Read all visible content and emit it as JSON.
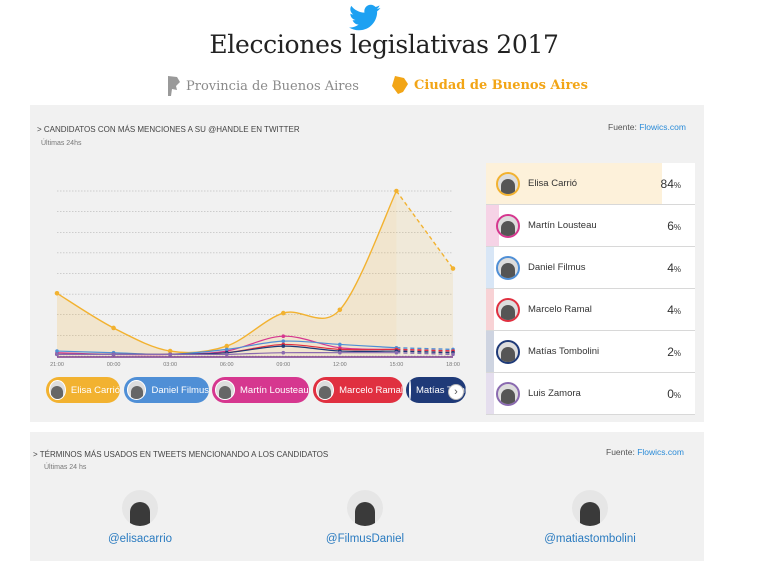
{
  "header": {
    "title": "Elecciones legislativas 2017",
    "twitter_color": "#1da1f2"
  },
  "tabs": [
    {
      "label": "Provincia de Buenos Aires",
      "active": false,
      "color": "#8a8a8a"
    },
    {
      "label": "Ciudad de Buenos Aires",
      "active": true,
      "color": "#f2a516"
    }
  ],
  "panel1": {
    "title": "> CANDIDATOS CON MÁS MENCIONES A SU @Handle EN TWITTER",
    "subtitle": "Últimas 24hs",
    "source_label": "Fuente:",
    "source_link": "Flowics.com"
  },
  "chart_data": {
    "type": "area",
    "x": [
      "21:00",
      "00:00",
      "03:00",
      "06:00",
      "09:00",
      "12:00",
      "15:00",
      "18:00"
    ],
    "ylim": [
      0,
      100
    ],
    "grid": true,
    "projected_from_index": 6,
    "series": [
      {
        "name": "Elisa Carrió",
        "color": "#f2b230",
        "values": [
          38,
          17,
          3,
          6,
          26,
          28,
          100,
          53
        ]
      },
      {
        "name": "Martín Lousteau",
        "color": "#d6378f",
        "values": [
          2,
          1,
          1,
          3,
          12,
          5,
          4,
          3
        ]
      },
      {
        "name": "Daniel Filmus",
        "color": "#4f8fd6",
        "values": [
          3,
          2,
          1,
          4,
          9,
          7,
          5,
          4
        ]
      },
      {
        "name": "Marcelo Ramal",
        "color": "#e03040",
        "values": [
          1,
          1,
          1,
          2,
          7,
          4,
          4,
          3
        ]
      },
      {
        "name": "Matías Tombolini",
        "color": "#1f3a78",
        "values": [
          1,
          1,
          1,
          2,
          6,
          3,
          3,
          2
        ]
      },
      {
        "name": "Luis Zamora",
        "color": "#8a6ab0",
        "values": [
          1,
          1,
          1,
          1,
          2,
          2,
          2,
          1
        ]
      }
    ]
  },
  "chips": [
    {
      "label": "Elisa Carrió",
      "color": "#f2b230"
    },
    {
      "label": "Daniel Filmus",
      "color": "#4f8fd6"
    },
    {
      "label": "Martín Lousteau",
      "color": "#d6378f"
    },
    {
      "label": "Marcelo Ramal",
      "color": "#e03040"
    },
    {
      "label": "Matías Tombolini",
      "color": "#1f3a78"
    }
  ],
  "chip_scroll_icon": "›",
  "ranking": [
    {
      "name": "Elisa Carrió",
      "percent": "84",
      "color": "#f2b230",
      "share": 0.84
    },
    {
      "name": "Martín Lousteau",
      "percent": "6",
      "color": "#d6378f",
      "share": 0.06
    },
    {
      "name": "Daniel Filmus",
      "percent": "4",
      "color": "#4f8fd6",
      "share": 0.04
    },
    {
      "name": "Marcelo Ramal",
      "percent": "4",
      "color": "#e03040",
      "share": 0.04
    },
    {
      "name": "Matías Tombolini",
      "percent": "2",
      "color": "#1f3a78",
      "share": 0.02
    },
    {
      "name": "Luis Zamora",
      "percent": "0",
      "color": "#8a6ab0",
      "share": 0.0
    }
  ],
  "percent_sign": "%",
  "panel2": {
    "title": "> TÉRMINOS MÁS USADOS EN TWEETS MENCIONANDO A LOS CANDIDATOS",
    "subtitle": "Últimas 24 hs",
    "source_label": "Fuente:",
    "source_link": "Flowics.com",
    "handles": [
      {
        "handle": "@elisacarrio"
      },
      {
        "handle": "@FilmusDaniel"
      },
      {
        "handle": "@matiastombolini"
      }
    ]
  }
}
